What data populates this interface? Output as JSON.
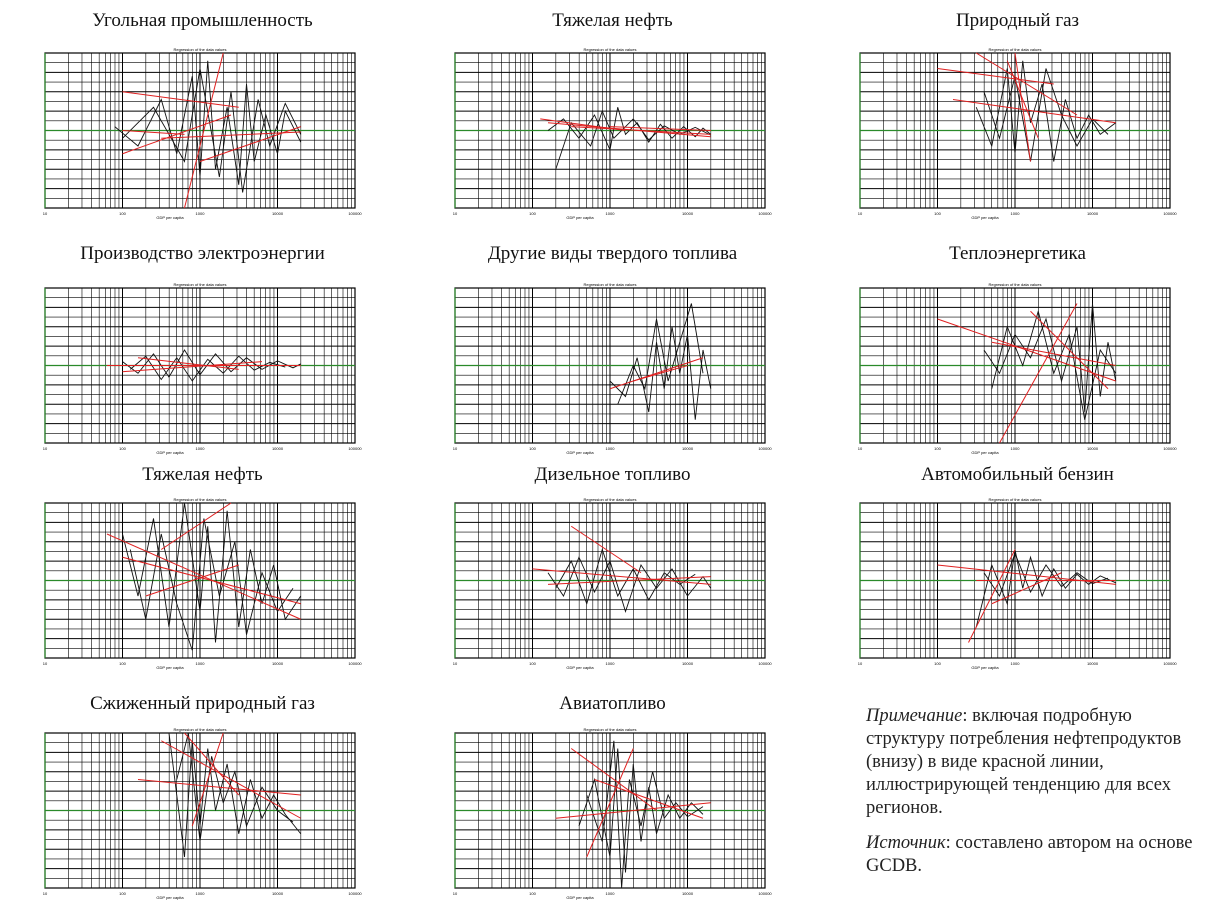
{
  "chart_data": [
    {
      "type": "line",
      "title": "Угольная промышленность",
      "subtitle": "Regression of the data values",
      "xlabel": "GDP per capita",
      "xscale": "log",
      "xlim": [
        10,
        100000
      ],
      "ylim": [
        -100,
        100
      ],
      "xticks": [
        "10",
        "100",
        "1000",
        "10000",
        "100000"
      ],
      "series": [
        {
          "x": [
            1.9,
            2.2,
            2.5,
            2.7,
            2.9,
            3.0,
            3.1,
            3.2,
            3.35,
            3.5,
            3.6,
            3.7,
            3.85,
            4.0,
            4.1,
            4.3
          ],
          "y": [
            5,
            -20,
            40,
            -30,
            70,
            -60,
            90,
            -50,
            30,
            -70,
            60,
            -40,
            20,
            -30,
            25,
            -15
          ]
        },
        {
          "x": [
            2.0,
            2.4,
            2.8,
            3.0,
            3.25,
            3.4,
            3.55,
            3.75,
            3.9,
            4.1,
            4.3
          ],
          "y": [
            -10,
            30,
            -40,
            80,
            -60,
            50,
            -80,
            40,
            -20,
            35,
            -5
          ]
        }
      ],
      "trends": [
        [
          2.0,
          0,
          2.8,
          -5
        ],
        [
          2.0,
          -30,
          3.4,
          20
        ],
        [
          2.8,
          -100,
          3.3,
          100
        ],
        [
          2.5,
          -10,
          4.3,
          -2
        ],
        [
          3.0,
          -40,
          4.3,
          5
        ],
        [
          2.0,
          50,
          3.5,
          30
        ]
      ]
    },
    {
      "type": "line",
      "title": "Тяжелая нефть",
      "subtitle": "Regression of the data values",
      "xlabel": "GDP per capita",
      "xscale": "log",
      "xlim": [
        10,
        100000
      ],
      "ylim": [
        -100,
        100
      ],
      "xticks": [
        "10",
        "100",
        "1000",
        "10000",
        "100000"
      ],
      "series": [
        {
          "x": [
            2.2,
            2.4,
            2.6,
            2.8,
            3.0,
            3.1,
            3.2,
            3.35,
            3.5,
            3.65,
            3.8,
            3.95,
            4.1,
            4.2,
            4.3
          ],
          "y": [
            0,
            15,
            -10,
            20,
            -25,
            30,
            -5,
            10,
            -15,
            8,
            -10,
            5,
            -8,
            3,
            -5
          ]
        },
        {
          "x": [
            2.3,
            2.5,
            2.75,
            2.9,
            3.05,
            3.3,
            3.5,
            3.7,
            3.9,
            4.1,
            4.3
          ],
          "y": [
            -50,
            10,
            -20,
            25,
            -10,
            15,
            -12,
            6,
            -5,
            4,
            -6
          ]
        }
      ],
      "trends": [
        [
          2.1,
          15,
          3.2,
          0
        ],
        [
          2.5,
          5,
          4.3,
          -5
        ],
        [
          2.2,
          10,
          4.3,
          -8
        ],
        [
          3.0,
          5,
          4.3,
          0
        ]
      ]
    },
    {
      "type": "line",
      "title": "Природный газ",
      "subtitle": "Regression of the data values",
      "xlabel": "GDP per capita",
      "xscale": "log",
      "xlim": [
        10,
        100000
      ],
      "ylim": [
        -100,
        100
      ],
      "xticks": [
        "10",
        "100",
        "1000",
        "10000",
        "100000"
      ],
      "series": [
        {
          "x": [
            2.5,
            2.7,
            2.9,
            3.0,
            3.1,
            3.2,
            3.35,
            3.5,
            3.65,
            3.8,
            3.95,
            4.1,
            4.3
          ],
          "y": [
            30,
            -20,
            80,
            -30,
            90,
            10,
            60,
            -40,
            40,
            -10,
            20,
            -5,
            10
          ]
        },
        {
          "x": [
            2.6,
            2.8,
            3.0,
            3.2,
            3.4,
            3.6,
            3.8,
            4.0,
            4.2
          ],
          "y": [
            50,
            -10,
            70,
            -40,
            80,
            20,
            -20,
            15,
            -5
          ]
        }
      ],
      "trends": [
        [
          2.0,
          80,
          3.5,
          60
        ],
        [
          2.5,
          100,
          3.8,
          20
        ],
        [
          2.9,
          90,
          3.3,
          -10
        ],
        [
          2.2,
          40,
          4.3,
          10
        ],
        [
          3.0,
          100,
          3.2,
          -40
        ]
      ]
    },
    {
      "type": "line",
      "title": "Производство электроэнергии",
      "subtitle": "Regression of the data values",
      "xlabel": "GDP per capita",
      "xscale": "log",
      "xlim": [
        10,
        100000
      ],
      "ylim": [
        -100,
        100
      ],
      "xticks": [
        "10",
        "100",
        "1000",
        "10000",
        "100000"
      ],
      "series": [
        {
          "x": [
            2.0,
            2.2,
            2.4,
            2.6,
            2.8,
            3.0,
            3.2,
            3.4,
            3.6,
            3.8,
            4.0,
            4.2,
            4.3
          ],
          "y": [
            5,
            -10,
            15,
            -15,
            20,
            -12,
            15,
            -8,
            10,
            -5,
            6,
            -3,
            2
          ]
        },
        {
          "x": [
            2.1,
            2.3,
            2.5,
            2.7,
            2.9,
            3.1,
            3.3,
            3.5,
            3.7,
            3.9,
            4.1
          ],
          "y": [
            -5,
            12,
            -18,
            10,
            -20,
            8,
            -10,
            12,
            -6,
            4,
            -2
          ]
        }
      ],
      "trends": [
        [
          1.8,
          0,
          4.3,
          0
        ],
        [
          2.2,
          10,
          3.5,
          -5
        ],
        [
          2.0,
          -8,
          3.8,
          5
        ]
      ]
    },
    {
      "type": "line",
      "title": "Другие виды твердого топлива",
      "subtitle": "Regression of the data values",
      "xlabel": "GDP per capita",
      "xscale": "log",
      "xlim": [
        10,
        100000
      ],
      "ylim": [
        -100,
        100
      ],
      "xticks": [
        "10",
        "100",
        "1000",
        "10000",
        "100000"
      ],
      "series": [
        {
          "x": [
            3.0,
            3.2,
            3.35,
            3.5,
            3.6,
            3.7,
            3.8,
            3.9,
            4.0,
            4.1,
            4.2,
            4.3
          ],
          "y": [
            -20,
            -40,
            10,
            -60,
            30,
            -30,
            50,
            -10,
            40,
            -70,
            20,
            -30
          ]
        },
        {
          "x": [
            3.1,
            3.3,
            3.45,
            3.6,
            3.75,
            3.9,
            4.05,
            4.2
          ],
          "y": [
            -50,
            0,
            -30,
            60,
            -20,
            30,
            80,
            -10
          ]
        }
      ],
      "trends": [
        [
          3.0,
          -30,
          4.2,
          10
        ],
        [
          3.3,
          -20,
          4.0,
          0
        ]
      ]
    },
    {
      "type": "line",
      "title": "Теплоэнергетика",
      "subtitle": "Regression of the data values",
      "xlabel": "GDP per capita",
      "xscale": "log",
      "xlim": [
        10,
        100000
      ],
      "ylim": [
        -100,
        100
      ],
      "xticks": [
        "10",
        "100",
        "1000",
        "10000",
        "100000"
      ],
      "series": [
        {
          "x": [
            2.6,
            2.8,
            3.0,
            3.2,
            3.4,
            3.6,
            3.8,
            3.9,
            4.0,
            4.1,
            4.2,
            4.3
          ],
          "y": [
            20,
            -10,
            40,
            10,
            60,
            -20,
            50,
            -60,
            80,
            -40,
            30,
            -20
          ]
        },
        {
          "x": [
            2.7,
            2.9,
            3.1,
            3.3,
            3.5,
            3.7,
            3.9,
            4.1,
            4.3
          ],
          "y": [
            -30,
            50,
            0,
            70,
            -10,
            40,
            -70,
            20,
            -10
          ]
        }
      ],
      "trends": [
        [
          2.8,
          -100,
          3.8,
          80
        ],
        [
          2.0,
          60,
          4.3,
          -20
        ],
        [
          3.2,
          70,
          4.2,
          -30
        ],
        [
          2.7,
          30,
          4.3,
          0
        ]
      ]
    },
    {
      "type": "line",
      "title": "Тяжелая нефть",
      "subtitle": "Regression of the data values",
      "xlabel": "GDP per capita",
      "xscale": "log",
      "xlim": [
        10,
        100000
      ],
      "ylim": [
        -100,
        100
      ],
      "xticks": [
        "10",
        "100",
        "1000",
        "10000",
        "100000"
      ],
      "series": [
        {
          "x": [
            2.0,
            2.2,
            2.4,
            2.6,
            2.8,
            3.0,
            3.1,
            3.2,
            3.35,
            3.5,
            3.65,
            3.8,
            3.95,
            4.1,
            4.3
          ],
          "y": [
            60,
            -20,
            80,
            -60,
            100,
            -40,
            70,
            -80,
            90,
            -60,
            40,
            -30,
            20,
            -50,
            -20
          ]
        },
        {
          "x": [
            2.1,
            2.3,
            2.5,
            2.7,
            2.9,
            3.05,
            3.25,
            3.45,
            3.6,
            3.8,
            4.0,
            4.2
          ],
          "y": [
            40,
            -50,
            60,
            -30,
            -90,
            80,
            -20,
            50,
            -70,
            10,
            -40,
            -10
          ]
        }
      ],
      "trends": [
        [
          1.8,
          60,
          4.3,
          -50
        ],
        [
          2.5,
          40,
          3.4,
          100
        ],
        [
          2.0,
          30,
          4.3,
          -30
        ],
        [
          2.3,
          -20,
          3.5,
          20
        ]
      ]
    },
    {
      "type": "line",
      "title": "Дизельное топливо",
      "subtitle": "Regression of the data values",
      "xlabel": "GDP per capita",
      "xscale": "log",
      "xlim": [
        10,
        100000
      ],
      "ylim": [
        -100,
        100
      ],
      "xticks": [
        "10",
        "100",
        "1000",
        "10000",
        "100000"
      ],
      "series": [
        {
          "x": [
            2.2,
            2.4,
            2.6,
            2.8,
            3.0,
            3.2,
            3.4,
            3.6,
            3.8,
            4.0,
            4.2,
            4.3
          ],
          "y": [
            10,
            -20,
            30,
            -15,
            25,
            -40,
            20,
            -10,
            15,
            -20,
            5,
            -10
          ]
        },
        {
          "x": [
            2.3,
            2.5,
            2.7,
            2.9,
            3.1,
            3.3,
            3.5,
            3.7,
            3.9,
            4.1
          ],
          "y": [
            -10,
            25,
            -30,
            40,
            -20,
            15,
            -25,
            10,
            -5,
            8
          ]
        }
      ],
      "trends": [
        [
          2.5,
          70,
          3.4,
          10
        ],
        [
          2.0,
          15,
          4.3,
          -5
        ],
        [
          2.2,
          -5,
          4.3,
          5
        ]
      ]
    },
    {
      "type": "line",
      "title": "Автомобильный бензин",
      "subtitle": "Regression of the data values",
      "xlabel": "GDP per capita",
      "xscale": "log",
      "xlim": [
        10,
        100000
      ],
      "ylim": [
        -100,
        100
      ],
      "xticks": [
        "10",
        "100",
        "1000",
        "10000",
        "100000"
      ],
      "series": [
        {
          "x": [
            2.5,
            2.7,
            2.9,
            3.0,
            3.1,
            3.2,
            3.35,
            3.5,
            3.65,
            3.8,
            3.95,
            4.1,
            4.3
          ],
          "y": [
            -60,
            20,
            -30,
            40,
            -10,
            30,
            -20,
            15,
            -10,
            8,
            -5,
            6,
            -3
          ]
        },
        {
          "x": [
            2.6,
            2.8,
            3.0,
            3.2,
            3.4,
            3.6,
            3.8,
            4.0,
            4.2
          ],
          "y": [
            10,
            -20,
            35,
            -15,
            20,
            -8,
            10,
            -4,
            3
          ]
        }
      ],
      "trends": [
        [
          2.4,
          -80,
          3.0,
          40
        ],
        [
          2.0,
          20,
          4.3,
          -5
        ],
        [
          2.5,
          0,
          4.3,
          0
        ],
        [
          2.7,
          -30,
          3.6,
          10
        ]
      ]
    },
    {
      "type": "line",
      "title": "Сжиженный природный газ",
      "subtitle": "Regression of the data values",
      "xlabel": "GDP per capita",
      "xscale": "log",
      "xlim": [
        10,
        100000
      ],
      "ylim": [
        -100,
        100
      ],
      "xticks": [
        "10",
        "100",
        "1000",
        "10000",
        "100000"
      ],
      "series": [
        {
          "x": [
            2.6,
            2.8,
            2.9,
            3.0,
            3.1,
            3.2,
            3.35,
            3.5,
            3.65,
            3.8,
            3.95,
            4.1,
            4.3
          ],
          "y": [
            100,
            -60,
            90,
            -20,
            80,
            0,
            60,
            -30,
            40,
            -10,
            20,
            -5,
            -30
          ]
        },
        {
          "x": [
            2.7,
            2.85,
            3.0,
            3.15,
            3.3,
            3.45,
            3.6,
            3.8,
            4.0,
            4.2
          ],
          "y": [
            40,
            100,
            -40,
            70,
            10,
            50,
            -20,
            30,
            0,
            -15
          ]
        }
      ],
      "trends": [
        [
          2.5,
          90,
          4.3,
          -10
        ],
        [
          2.8,
          100,
          3.5,
          20
        ],
        [
          2.2,
          40,
          4.3,
          20
        ],
        [
          2.9,
          -20,
          3.3,
          100
        ]
      ]
    },
    {
      "type": "line",
      "title": "Авиатопливо",
      "subtitle": "Regression of the data values",
      "xlabel": "GDP per capita",
      "xscale": "log",
      "xlim": [
        10,
        100000
      ],
      "ylim": [
        -100,
        100
      ],
      "xticks": [
        "10",
        "100",
        "1000",
        "10000",
        "100000"
      ],
      "series": [
        {
          "x": [
            2.6,
            2.8,
            3.0,
            3.1,
            3.2,
            3.3,
            3.4,
            3.5,
            3.6,
            3.75,
            3.9,
            4.05,
            4.2
          ],
          "y": [
            -20,
            40,
            -60,
            80,
            -80,
            60,
            -40,
            30,
            -30,
            20,
            -10,
            10,
            -5
          ]
        },
        {
          "x": [
            2.7,
            2.9,
            3.05,
            3.15,
            3.25,
            3.4,
            3.55,
            3.7,
            3.85,
            4.0,
            4.2
          ],
          "y": [
            20,
            -40,
            90,
            -100,
            40,
            -20,
            50,
            -10,
            10,
            -8,
            5
          ]
        }
      ],
      "trends": [
        [
          2.5,
          80,
          3.6,
          0
        ],
        [
          2.7,
          -60,
          3.3,
          80
        ],
        [
          2.3,
          -10,
          4.3,
          10
        ],
        [
          2.8,
          40,
          4.2,
          -10
        ]
      ]
    }
  ],
  "note": {
    "label1": "Примечание",
    "text1": ": включая подробную структуру потребления нефтепро­дуктов (внизу) в виде красной линии, иллюстрирующей тенденцию для всех регионов.",
    "label2": "Источник",
    "text2": ": составлено автором на основе GCDB."
  },
  "colors": {
    "series": "#111111",
    "trend": "#e02020",
    "zero": "#2a8a2a",
    "grid": "#000000"
  }
}
